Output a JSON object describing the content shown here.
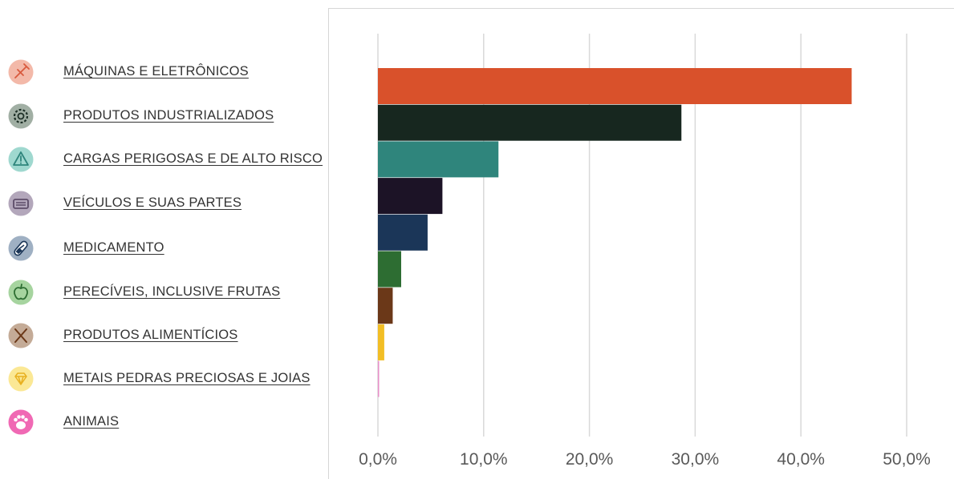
{
  "chart_data": {
    "type": "bar",
    "orientation": "horizontal",
    "categories": [
      "MÁQUINAS E ELETRÔNICOS",
      "PRODUTOS INDUSTRIALIZADOS",
      "CARGAS PERIGOSAS E DE ALTO RISCO",
      "VEÍCULOS E SUAS PARTES",
      "MEDICAMENTO",
      "PERECÍVEIS, INCLUSIVE FRUTAS",
      "PRODUTOS ALIMENTÍCIOS",
      "METAIS PEDRAS PRECIOSAS E JOIAS",
      "ANIMAIS"
    ],
    "values": [
      44.8,
      28.7,
      11.4,
      6.1,
      4.7,
      2.2,
      1.4,
      0.6,
      0.1
    ],
    "colors": [
      "#d9512b",
      "#17271f",
      "#2f857c",
      "#1c1326",
      "#1b3658",
      "#2d6d32",
      "#6b3818",
      "#f2be25",
      "#e88ec8"
    ],
    "icon_colors": [
      "#f3b9a9",
      "#a1afa4",
      "#9fd8cf",
      "#b3a7bb",
      "#9fb0c3",
      "#a6d49f",
      "#c4ab97",
      "#fbe895",
      "#f069b4"
    ],
    "icons": [
      "plug-icon",
      "gear-icon",
      "warning-icon",
      "truck-icon",
      "pill-icon",
      "apple-icon",
      "fork-knife-icon",
      "diamond-icon",
      "paw-icon"
    ],
    "xlim": [
      0,
      50
    ],
    "xticks": [
      "0,0%",
      "10,0%",
      "20,0%",
      "30,0%",
      "40,0%",
      "50,0%"
    ],
    "grid": true,
    "title": "",
    "xlabel": "",
    "ylabel": ""
  }
}
